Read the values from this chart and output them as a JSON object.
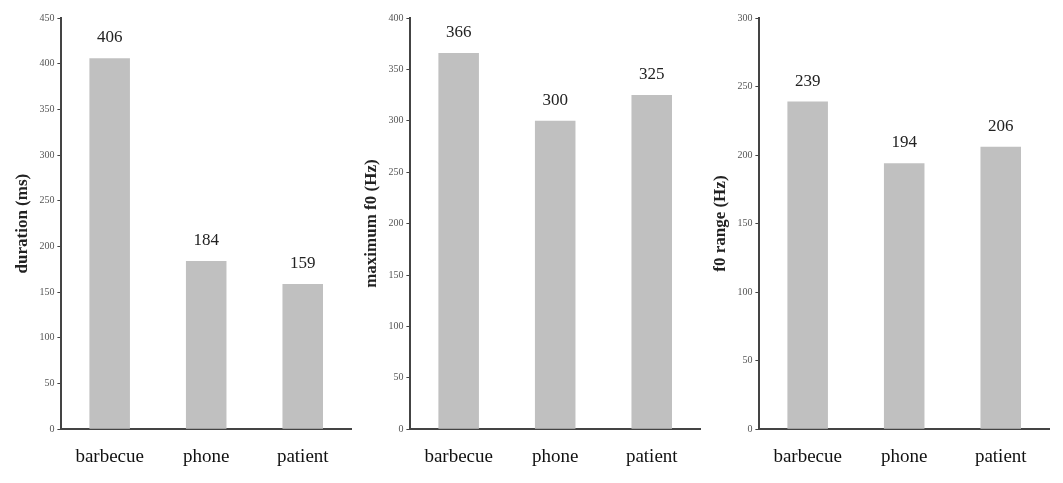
{
  "chart_data": [
    {
      "type": "bar",
      "ylabel": "duration (ms)",
      "categories": [
        "barbecue",
        "phone",
        "patient"
      ],
      "values": [
        406,
        184,
        159
      ],
      "color": "#c0c0c0",
      "ylim": [
        0,
        450
      ],
      "yticks": [
        0,
        50,
        100,
        150,
        200,
        250,
        300,
        350,
        400,
        450
      ],
      "grid": false,
      "data_labels": true
    },
    {
      "type": "bar",
      "ylabel": "maximum f0 (Hz)",
      "categories": [
        "barbecue",
        "phone",
        "patient"
      ],
      "values": [
        366,
        300,
        325
      ],
      "color": "#c0c0c0",
      "ylim": [
        0,
        400
      ],
      "yticks": [
        0,
        50,
        100,
        150,
        200,
        250,
        300,
        350,
        400
      ],
      "grid": false,
      "data_labels": true
    },
    {
      "type": "bar",
      "ylabel": "f0 range (Hz)",
      "categories": [
        "barbecue",
        "phone",
        "patient"
      ],
      "values": [
        239,
        194,
        206
      ],
      "color": "#c0c0c0",
      "ylim": [
        0,
        300
      ],
      "yticks": [
        0,
        50,
        100,
        150,
        200,
        250,
        300
      ],
      "grid": false,
      "data_labels": true
    }
  ]
}
